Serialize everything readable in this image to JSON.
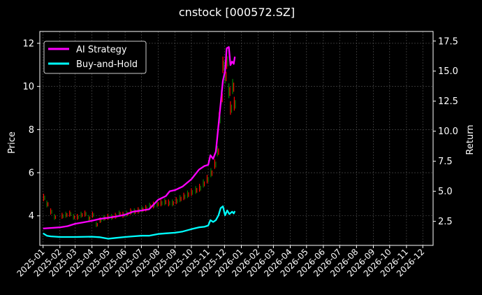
{
  "chart_data": {
    "type": "line",
    "title": "cnstock [000572.SZ]",
    "ylabel_left": "Price",
    "ylabel_right": "Return",
    "x_ticks": [
      "2025-01",
      "2025-02",
      "2025-03",
      "2025-04",
      "2025-05",
      "2025-06",
      "2025-07",
      "2025-08",
      "2025-09",
      "2025-10",
      "2025-11",
      "2025-12",
      "2026-01",
      "2026-02",
      "2026-03",
      "2026-04",
      "2026-05",
      "2026-06",
      "2026-07",
      "2026-08",
      "2026-09",
      "2026-10",
      "2026-11",
      "2026-12"
    ],
    "left_yticks": [
      "4",
      "6",
      "8",
      "10",
      "12"
    ],
    "right_yticks": [
      "2.5",
      "5.0",
      "7.5",
      "10.0",
      "12.5",
      "15.0",
      "17.5"
    ],
    "left_ylim": [
      2.63,
      12.55
    ],
    "right_ylim": [
      0.5,
      18.3
    ],
    "xlim": [
      "2024-12-26",
      "2026-12-20"
    ],
    "grid": true,
    "legend_position": "top-left",
    "colors": {
      "background": "#000000",
      "ai_strategy": "#ff00ff",
      "buy_and_hold": "#00ffff",
      "candle_up": "#008000",
      "candle_down": "#ff0000",
      "grid": "#555555"
    },
    "candles_price": [
      [
        "2025-01-02",
        4.85
      ],
      [
        "2025-01-08",
        4.55
      ],
      [
        "2025-01-15",
        4.2
      ],
      [
        "2025-01-22",
        3.95
      ],
      [
        "2025-02-05",
        4.0
      ],
      [
        "2025-02-12",
        4.05
      ],
      [
        "2025-02-19",
        4.1
      ],
      [
        "2025-02-26",
        3.95
      ],
      [
        "2025-03-05",
        3.95
      ],
      [
        "2025-03-12",
        4.05
      ],
      [
        "2025-03-19",
        4.1
      ],
      [
        "2025-03-26",
        3.9
      ],
      [
        "2025-04-02",
        4.05
      ],
      [
        "2025-04-09",
        3.6
      ],
      [
        "2025-04-16",
        3.8
      ],
      [
        "2025-04-23",
        3.9
      ],
      [
        "2025-04-30",
        3.95
      ],
      [
        "2025-05-07",
        3.95
      ],
      [
        "2025-05-14",
        4.0
      ],
      [
        "2025-05-21",
        4.1
      ],
      [
        "2025-05-28",
        4.05
      ],
      [
        "2025-06-04",
        4.1
      ],
      [
        "2025-06-11",
        4.2
      ],
      [
        "2025-06-18",
        4.2
      ],
      [
        "2025-06-25",
        4.25
      ],
      [
        "2025-07-02",
        4.3
      ],
      [
        "2025-07-09",
        4.35
      ],
      [
        "2025-07-16",
        4.45
      ],
      [
        "2025-07-23",
        4.5
      ],
      [
        "2025-07-30",
        4.55
      ],
      [
        "2025-08-06",
        4.6
      ],
      [
        "2025-08-13",
        4.65
      ],
      [
        "2025-08-20",
        4.6
      ],
      [
        "2025-08-27",
        4.6
      ],
      [
        "2025-09-03",
        4.7
      ],
      [
        "2025-09-10",
        4.8
      ],
      [
        "2025-09-17",
        4.9
      ],
      [
        "2025-09-24",
        5.0
      ],
      [
        "2025-10-01",
        5.1
      ],
      [
        "2025-10-09",
        5.2
      ],
      [
        "2025-10-16",
        5.3
      ],
      [
        "2025-10-23",
        5.5
      ],
      [
        "2025-10-30",
        5.7
      ],
      [
        "2025-11-06",
        6.0
      ],
      [
        "2025-11-13",
        6.4
      ],
      [
        "2025-11-18",
        7.0
      ],
      [
        "2025-11-21",
        8.5
      ],
      [
        "2025-11-25",
        9.5
      ],
      [
        "2025-11-28",
        11.0
      ],
      [
        "2025-12-02",
        10.5
      ],
      [
        "2025-12-05",
        11.2
      ],
      [
        "2025-12-09",
        9.8
      ],
      [
        "2025-12-12",
        9.0
      ],
      [
        "2025-12-16",
        10.0
      ],
      [
        "2025-12-19",
        9.2
      ]
    ],
    "series": [
      {
        "name": "AI Strategy",
        "axis": "right",
        "points": [
          [
            "2025-01-01",
            1.9
          ],
          [
            "2025-01-15",
            1.95
          ],
          [
            "2025-02-01",
            2.0
          ],
          [
            "2025-02-15",
            2.1
          ],
          [
            "2025-03-01",
            2.3
          ],
          [
            "2025-03-15",
            2.4
          ],
          [
            "2025-04-01",
            2.55
          ],
          [
            "2025-04-15",
            2.7
          ],
          [
            "2025-05-01",
            2.8
          ],
          [
            "2025-05-15",
            2.9
          ],
          [
            "2025-06-01",
            3.05
          ],
          [
            "2025-06-15",
            3.3
          ],
          [
            "2025-07-01",
            3.4
          ],
          [
            "2025-07-15",
            3.5
          ],
          [
            "2025-08-01",
            4.3
          ],
          [
            "2025-08-15",
            4.6
          ],
          [
            "2025-08-22",
            5.0
          ],
          [
            "2025-09-01",
            5.1
          ],
          [
            "2025-09-15",
            5.4
          ],
          [
            "2025-10-01",
            6.0
          ],
          [
            "2025-10-15",
            6.8
          ],
          [
            "2025-10-25",
            7.1
          ],
          [
            "2025-11-01",
            7.2
          ],
          [
            "2025-11-05",
            8.0
          ],
          [
            "2025-11-10",
            7.7
          ],
          [
            "2025-11-15",
            8.3
          ],
          [
            "2025-11-20",
            10.5
          ],
          [
            "2025-11-24",
            12.3
          ],
          [
            "2025-11-28",
            14.2
          ],
          [
            "2025-12-02",
            15.0
          ],
          [
            "2025-12-05",
            16.9
          ],
          [
            "2025-12-09",
            17.0
          ],
          [
            "2025-12-12",
            15.5
          ],
          [
            "2025-12-15",
            15.8
          ],
          [
            "2025-12-18",
            15.6
          ],
          [
            "2025-12-20",
            16.2
          ]
        ]
      },
      {
        "name": "Buy-and-Hold",
        "axis": "right",
        "points": [
          [
            "2025-01-01",
            1.5
          ],
          [
            "2025-01-08",
            1.3
          ],
          [
            "2025-01-15",
            1.25
          ],
          [
            "2025-02-01",
            1.2
          ],
          [
            "2025-03-01",
            1.2
          ],
          [
            "2025-04-01",
            1.22
          ],
          [
            "2025-04-15",
            1.18
          ],
          [
            "2025-05-01",
            1.05
          ],
          [
            "2025-05-15",
            1.12
          ],
          [
            "2025-06-01",
            1.2
          ],
          [
            "2025-06-15",
            1.25
          ],
          [
            "2025-07-01",
            1.3
          ],
          [
            "2025-07-15",
            1.3
          ],
          [
            "2025-08-01",
            1.45
          ],
          [
            "2025-08-15",
            1.5
          ],
          [
            "2025-09-01",
            1.55
          ],
          [
            "2025-09-15",
            1.65
          ],
          [
            "2025-10-01",
            1.85
          ],
          [
            "2025-10-15",
            2.0
          ],
          [
            "2025-10-25",
            2.05
          ],
          [
            "2025-11-01",
            2.15
          ],
          [
            "2025-11-05",
            2.6
          ],
          [
            "2025-11-10",
            2.45
          ],
          [
            "2025-11-15",
            2.6
          ],
          [
            "2025-11-20",
            3.0
          ],
          [
            "2025-11-24",
            3.6
          ],
          [
            "2025-11-28",
            3.75
          ],
          [
            "2025-12-02",
            3.0
          ],
          [
            "2025-12-06",
            3.4
          ],
          [
            "2025-12-10",
            3.1
          ],
          [
            "2025-12-15",
            3.3
          ],
          [
            "2025-12-18",
            3.15
          ],
          [
            "2025-12-20",
            3.35
          ]
        ]
      }
    ]
  }
}
